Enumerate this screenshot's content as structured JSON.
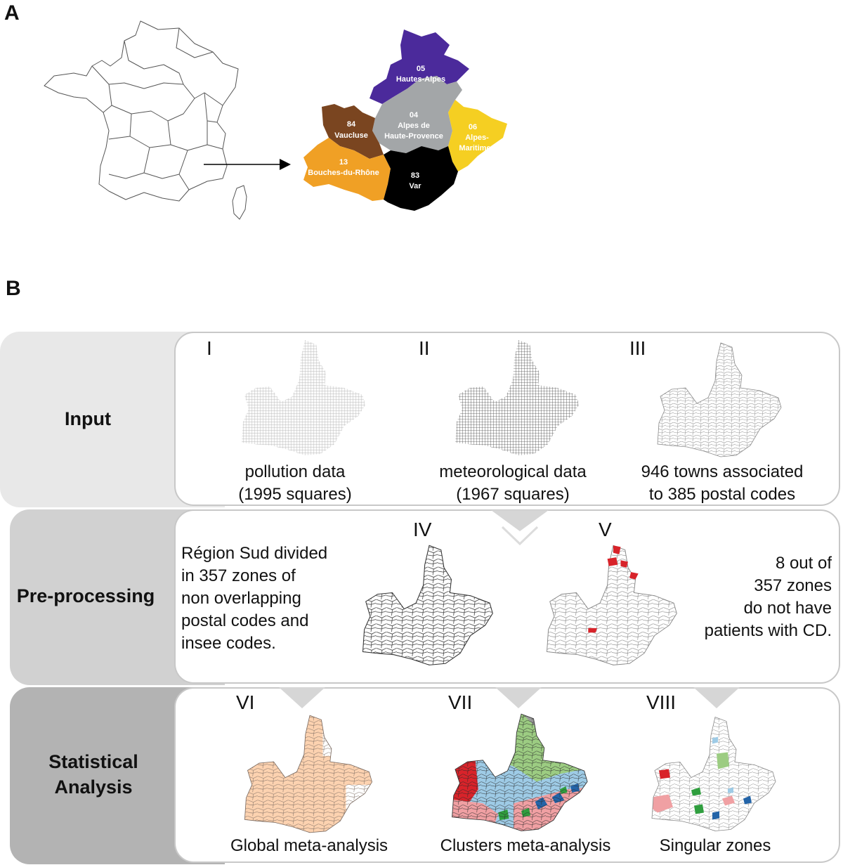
{
  "panel_a": {
    "letter": "A",
    "departments": [
      {
        "code": "05",
        "name": "Hautes-Alpes",
        "color": "#4b2a9b"
      },
      {
        "code": "04",
        "name_line1": "Alpes de",
        "name_line2": "Haute-Provence",
        "color": "#a3a6a8"
      },
      {
        "code": "84",
        "name": "Vaucluse",
        "color": "#7a4520"
      },
      {
        "code": "06",
        "name_line1": "Alpes-",
        "name_line2": "Maritimes",
        "color": "#f5cf22"
      },
      {
        "code": "13",
        "name": "Bouches-du-Rhône",
        "color": "#f0a025"
      },
      {
        "code": "83",
        "name": "Var",
        "color": "#000000"
      }
    ]
  },
  "panel_b": {
    "letter": "B",
    "stages": [
      {
        "label": "Input"
      },
      {
        "label": "Pre-processing"
      },
      {
        "label_line1": "Statistical",
        "label_line2": "Analysis"
      }
    ],
    "input": {
      "I": {
        "numeral": "I",
        "line1": "pollution data",
        "line2": "(1995 squares)"
      },
      "II": {
        "numeral": "II",
        "line1": "meteorological data",
        "line2": "(1967 squares)"
      },
      "III": {
        "numeral": "III",
        "line1": "946 towns associated",
        "line2": "to 385 postal codes"
      }
    },
    "preprocessing": {
      "left_text": [
        "Région Sud divided",
        "in 357 zones of",
        "non overlapping",
        "postal codes and",
        "insee codes."
      ],
      "IV": {
        "numeral": "IV"
      },
      "V": {
        "numeral": "V"
      },
      "right_text": [
        "8 out of",
        "357 zones",
        "do not have",
        "patients with CD."
      ]
    },
    "analysis": {
      "VI": {
        "numeral": "VI",
        "caption": "Global meta-analysis"
      },
      "VII": {
        "numeral": "VII",
        "caption": "Clusters meta-analysis"
      },
      "VIII": {
        "numeral": "VIII",
        "caption": "Singular zones"
      }
    },
    "colors": {
      "input_band": "#e8e8e8",
      "preproc_band": "#d1d1d1",
      "analysis_band": "#b3b3b3",
      "card_border": "#bdbdbd",
      "peach": "#fcd2b0",
      "cluster_green": "#9ccc82",
      "cluster_blue": "#9ecbe6",
      "cluster_grey": "#9a9a9a",
      "cluster_red": "#d8232a",
      "cluster_pink": "#f0a0a3",
      "cluster_dark_green": "#2f9e3e",
      "cluster_dark_blue": "#2364a8"
    }
  }
}
